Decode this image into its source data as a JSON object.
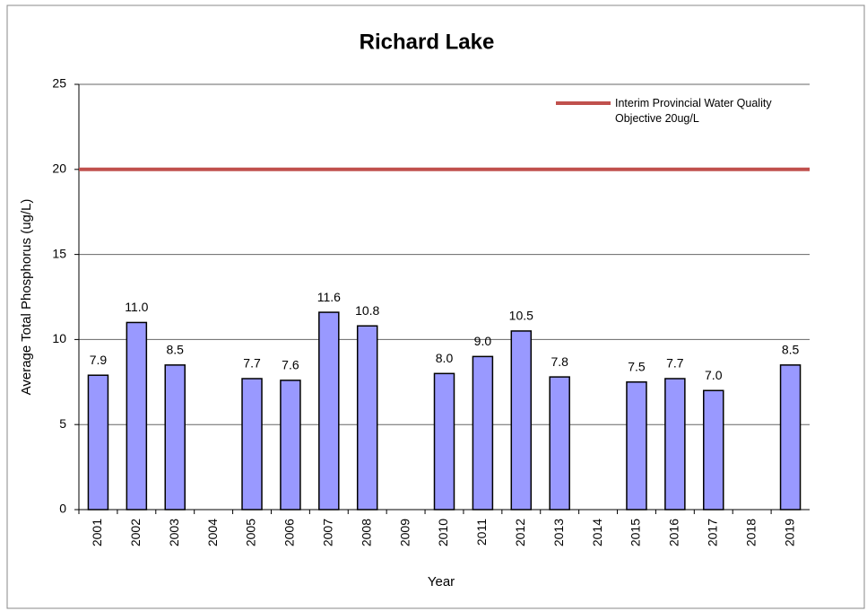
{
  "chart_data": {
    "type": "bar",
    "title": "Richard Lake",
    "x_label": "Year",
    "y_label": "Average Total Phosphorus (ug/L)",
    "categories": [
      "2001",
      "2002",
      "2003",
      "2004",
      "2005",
      "2006",
      "2007",
      "2008",
      "2009",
      "2010",
      "2011",
      "2012",
      "2013",
      "2014",
      "2015",
      "2016",
      "2017",
      "2018",
      "2019"
    ],
    "values": [
      7.9,
      11.0,
      8.5,
      null,
      7.7,
      7.6,
      11.6,
      10.8,
      null,
      8.0,
      9.0,
      10.5,
      7.8,
      null,
      7.5,
      7.7,
      7.0,
      null,
      8.5
    ],
    "value_labels": [
      "7.9",
      "11.0",
      "8.5",
      null,
      "7.7",
      "7.6",
      "11.6",
      "10.8",
      null,
      "8.0",
      "9.0",
      "10.5",
      "7.8",
      null,
      "7.5",
      "7.7",
      "7.0",
      null,
      "8.5"
    ],
    "color": "#9999ff",
    "ylim": [
      0,
      25
    ],
    "yticks": [
      0,
      5,
      10,
      15,
      20,
      25
    ],
    "grid": true,
    "reference_line": {
      "value": 20,
      "name": "Interim Provincial Water Quality Objective  20ug/L",
      "color": "#c0504d"
    },
    "legend": "upper right"
  }
}
